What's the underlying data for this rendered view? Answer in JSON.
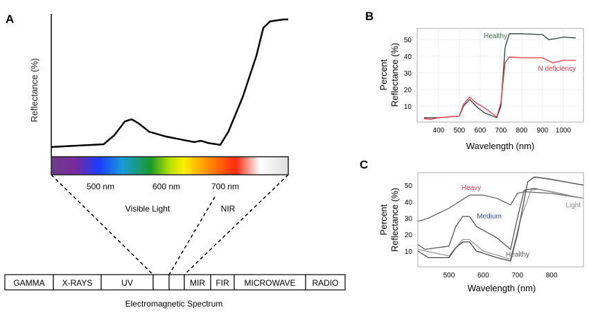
{
  "panel_labels": {
    "a": "A",
    "b": "B",
    "c": "C"
  },
  "chart_data": [
    {
      "type": "line",
      "title": "",
      "ylabel": "Reflectance (%)",
      "xlabel": "",
      "xlim": [
        421,
        801
      ],
      "ylim": [
        0,
        100
      ],
      "series": [
        {
          "name": "Reflectance",
          "color": "#000000",
          "x": [
            421,
            505,
            522,
            539,
            550,
            561,
            578,
            605,
            650,
            661,
            672,
            692,
            705,
            728,
            750,
            761,
            772,
            794,
            801
          ],
          "y": [
            1.6,
            3.7,
            10.5,
            21,
            22.6,
            19.5,
            13.2,
            9.5,
            5.3,
            6.3,
            4.7,
            3.2,
            13.2,
            39.5,
            71,
            92,
            97,
            98.4,
            98.4
          ]
        }
      ],
      "spectrum_ticks": [
        "500 nm",
        "600 nm",
        "700 nm"
      ],
      "region_labels": [
        "Visible Light",
        "NIR"
      ],
      "em_spectrum": {
        "bands": [
          "GAMMA",
          "X-RAYS",
          "UV",
          "",
          "",
          "MIR",
          "FIR",
          "MICROWAVE",
          "RADIO"
        ],
        "title": "Electromagnetic Spectrum"
      }
    },
    {
      "type": "line",
      "title": "",
      "xlabel": "Wavelength (nm)",
      "ylabel": [
        "Percent",
        "Reflectance (%)"
      ],
      "xlim": [
        297,
        1097
      ],
      "ylim": [
        0.4,
        56.7
      ],
      "xticks": [
        400,
        500,
        600,
        700,
        800,
        900,
        1000
      ],
      "yticks": [
        10,
        20,
        30,
        40,
        50
      ],
      "grid": true,
      "series": [
        {
          "name": "Healthy",
          "color": "#2f3f35",
          "label_color": "#3c6a44",
          "x": [
            330,
            400,
            500,
            520,
            550,
            580,
            620,
            680,
            700,
            720,
            740,
            800,
            900,
            930,
            960,
            1000,
            1060
          ],
          "y": [
            3,
            3,
            4,
            10,
            14,
            10,
            6,
            3,
            10,
            45,
            53.5,
            53.5,
            53,
            50,
            50.5,
            51.5,
            51
          ]
        },
        {
          "name": "N deficiency",
          "color": "#ee3344",
          "label_color": "#ee3344",
          "x": [
            330,
            360,
            400,
            500,
            520,
            550,
            580,
            620,
            680,
            700,
            720,
            740,
            800,
            900,
            950,
            1000,
            1060
          ],
          "y": [
            2.5,
            2,
            3,
            4,
            11,
            15.5,
            12,
            9,
            3.5,
            12,
            36,
            39.5,
            39,
            39,
            36,
            37.5,
            37.5
          ]
        }
      ]
    },
    {
      "type": "line",
      "title": "",
      "xlabel": "Wavelength (nm)",
      "ylabel": [
        "Percent",
        "Reflectance (%)"
      ],
      "xlim": [
        409,
        893
      ],
      "ylim": [
        0.3,
        57.6
      ],
      "xticks": [
        500,
        600,
        700,
        800
      ],
      "yticks": [
        10,
        20,
        30,
        40,
        50
      ],
      "grid": false,
      "series": [
        {
          "name": "Heavy",
          "color": "#666666",
          "label_color": "#ee3344",
          "x": [
            409,
            440,
            500,
            560,
            600,
            640,
            680,
            700,
            720,
            800,
            893
          ],
          "y": [
            28,
            30,
            36,
            44,
            44,
            42,
            38,
            45,
            46,
            45,
            42
          ]
        },
        {
          "name": "Medium",
          "color": "#555555",
          "label_color": "#3344aa",
          "x": [
            409,
            430,
            500,
            520,
            540,
            560,
            580,
            640,
            680,
            700,
            720,
            750,
            800,
            893
          ],
          "y": [
            14,
            11,
            13,
            25,
            31,
            31,
            25,
            18,
            11,
            30,
            47,
            48,
            46,
            42
          ]
        },
        {
          "name": "Light",
          "color": "#999999",
          "label_color": "#888888",
          "x": [
            409,
            500,
            540,
            560,
            600,
            680,
            710,
            740,
            760,
            893
          ],
          "y": [
            11,
            7,
            17,
            17,
            10,
            5,
            30,
            47,
            47.5,
            42
          ]
        },
        {
          "name": "Healthy",
          "color": "#444444",
          "label_color": "#555555",
          "x": [
            409,
            440,
            500,
            520,
            540,
            560,
            580,
            640,
            680,
            700,
            730,
            750,
            800,
            893
          ],
          "y": [
            10,
            6,
            6,
            12,
            15.5,
            15.5,
            10,
            6,
            4,
            20,
            52,
            55,
            53.5,
            50
          ]
        }
      ]
    }
  ]
}
